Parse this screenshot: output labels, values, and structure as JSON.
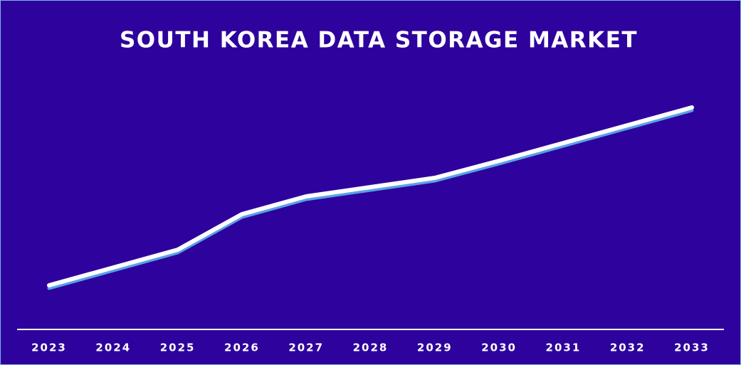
{
  "chart_data": {
    "type": "line",
    "title": "SOUTH KOREA DATA STORAGE MARKET",
    "categories": [
      "2023",
      "2024",
      "2025",
      "2026",
      "2027",
      "2028",
      "2029",
      "2030",
      "2031",
      "2032",
      "2033"
    ],
    "values": [
      62,
      87,
      112,
      162,
      187,
      200,
      213,
      237,
      262,
      287,
      312
    ],
    "color": "#ffffff",
    "shadow_color": "#5aa0e6",
    "ylim": [
      0,
      350
    ]
  }
}
